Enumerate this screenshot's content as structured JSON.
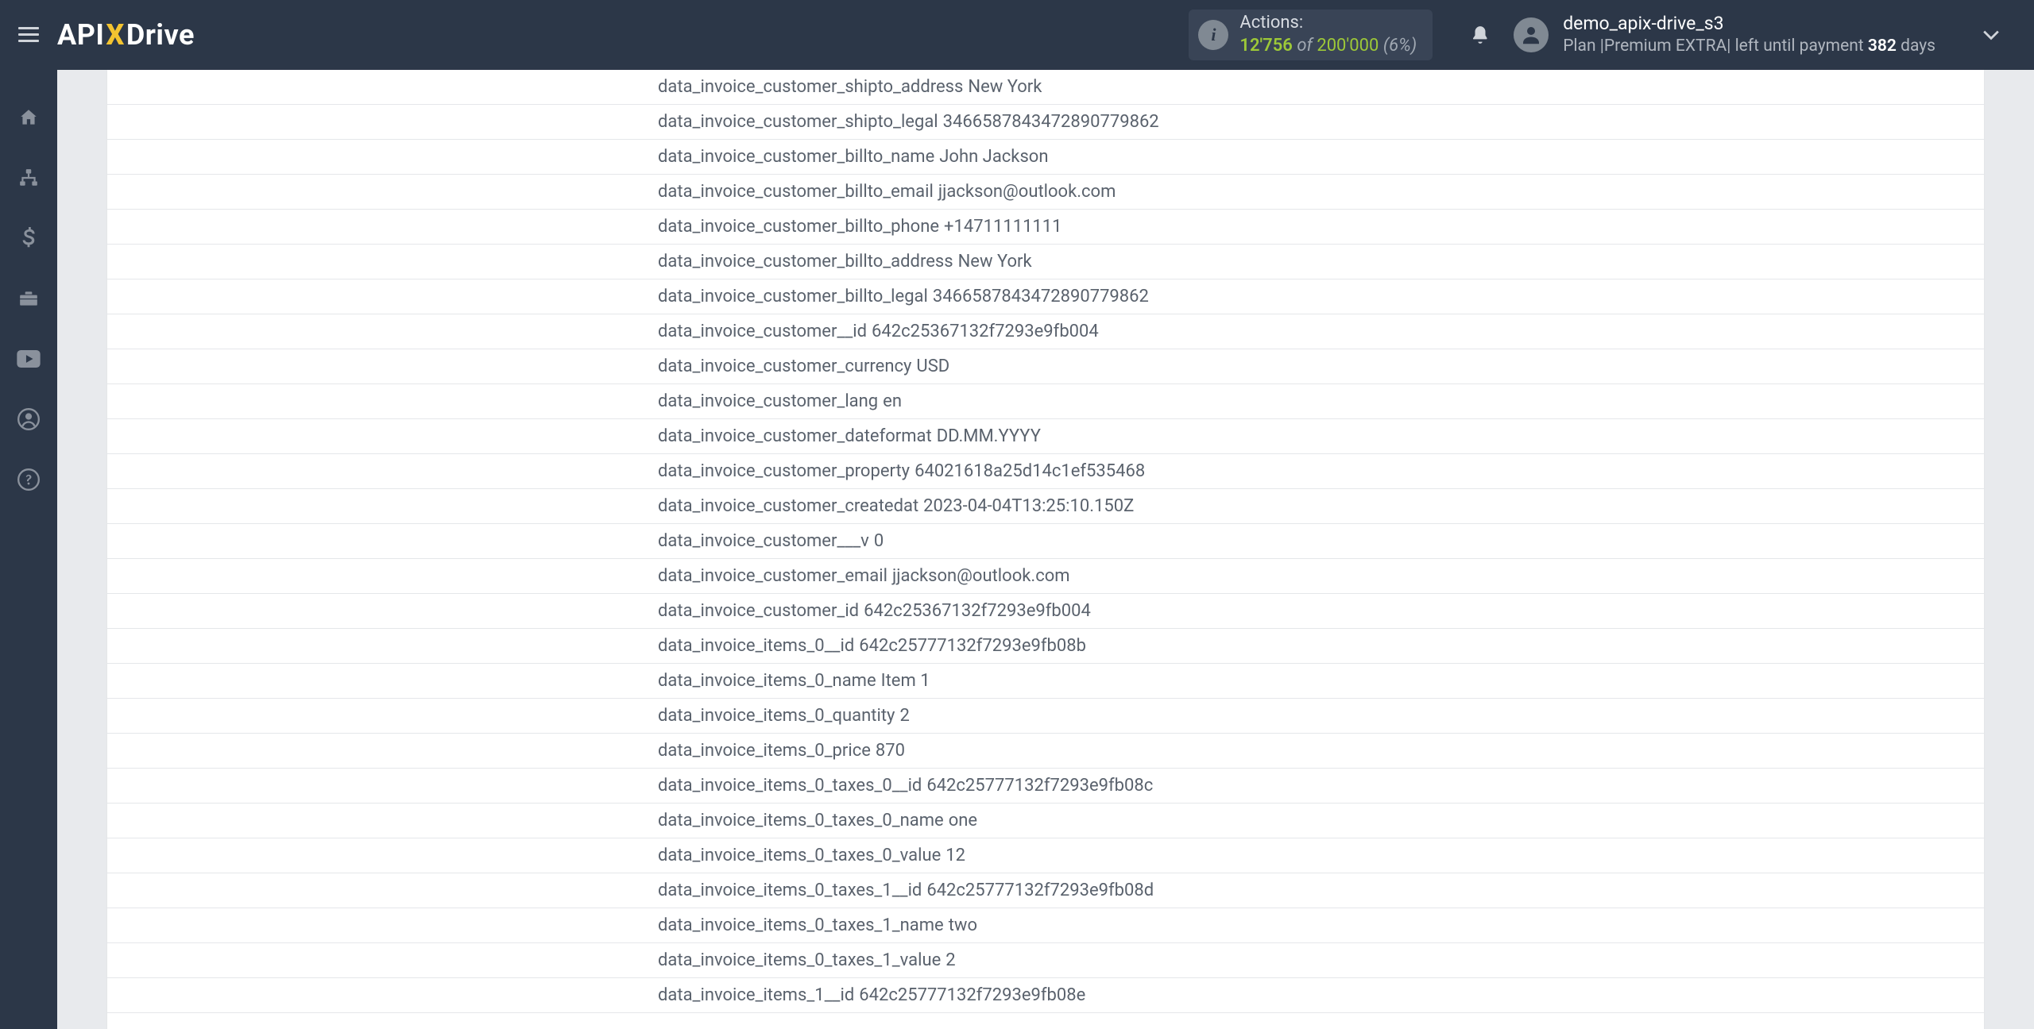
{
  "header": {
    "logo_prefix": "API",
    "logo_x": "X",
    "logo_suffix": "Drive",
    "actions_label": "Actions:",
    "actions_used": "12'756",
    "actions_of": "of",
    "actions_total": "200'000",
    "actions_pct": "(6%)",
    "user_name": "demo_apix-drive_s3",
    "plan_prefix": "Plan |",
    "plan_name": "Premium EXTRA",
    "plan_sep": "|",
    "plan_left": " left until payment ",
    "plan_days_num": "382",
    "plan_days_suffix": " days"
  },
  "rows": [
    {
      "k": "data_invoice_customer_shipto_address",
      "v": "New York"
    },
    {
      "k": "data_invoice_customer_shipto_legal",
      "v": "346658784347289077​9862"
    },
    {
      "k": "data_invoice_customer_billto_name",
      "v": "John Jackson"
    },
    {
      "k": "data_invoice_customer_billto_email",
      "v": "jjackson@outlook.com"
    },
    {
      "k": "data_invoice_customer_billto_phone",
      "v": "+14711111111"
    },
    {
      "k": "data_invoice_customer_billto_address",
      "v": "New York"
    },
    {
      "k": "data_invoice_customer_billto_legal",
      "v": "346658784347289077​9862"
    },
    {
      "k": "data_invoice_customer__id",
      "v": "642c25367132f7293e9fb004"
    },
    {
      "k": "data_invoice_customer_currency",
      "v": "USD"
    },
    {
      "k": "data_invoice_customer_lang",
      "v": "en"
    },
    {
      "k": "data_invoice_customer_dateformat",
      "v": "DD.MM.YYYY"
    },
    {
      "k": "data_invoice_customer_property",
      "v": "64021618a25d14c1ef535468"
    },
    {
      "k": "data_invoice_customer_createdat",
      "v": "2023-04-04T13:25:10.150Z"
    },
    {
      "k": "data_invoice_customer___v",
      "v": "0"
    },
    {
      "k": "data_invoice_customer_email",
      "v": "jjackson@outlook.com"
    },
    {
      "k": "data_invoice_customer_id",
      "v": "642c25367132f7293e9fb004"
    },
    {
      "k": "data_invoice_items_0__id",
      "v": "642c25777132f7293e9fb08b"
    },
    {
      "k": "data_invoice_items_0_name",
      "v": "Item 1"
    },
    {
      "k": "data_invoice_items_0_quantity",
      "v": "2"
    },
    {
      "k": "data_invoice_items_0_price",
      "v": "870"
    },
    {
      "k": "data_invoice_items_0_taxes_0__id",
      "v": "642c25777132f7293e9fb08c"
    },
    {
      "k": "data_invoice_items_0_taxes_0_name",
      "v": "one"
    },
    {
      "k": "data_invoice_items_0_taxes_0_value",
      "v": "12"
    },
    {
      "k": "data_invoice_items_0_taxes_1__id",
      "v": "642c25777132f7293e9fb08d"
    },
    {
      "k": "data_invoice_items_0_taxes_1_name",
      "v": "two"
    },
    {
      "k": "data_invoice_items_0_taxes_1_value",
      "v": "2"
    },
    {
      "k": "data_invoice_items_1__id",
      "v": "642c25777132f7293e9fb08e"
    }
  ]
}
